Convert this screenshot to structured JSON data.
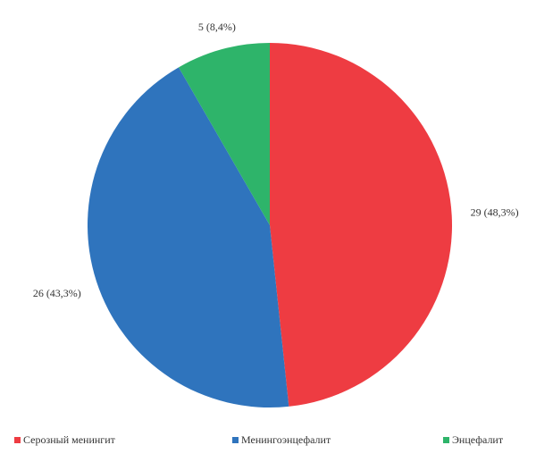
{
  "chart_data": {
    "type": "pie",
    "categories": [
      "Серозный менингит",
      "Менингоэнцефалит",
      "Энцефалит"
    ],
    "values": [
      29,
      26,
      5
    ],
    "value_labels": [
      "29 (48,3%)",
      "26 (43,3%)",
      "5 (8,4%)"
    ],
    "colors": [
      "#ee3c42",
      "#2f74bd",
      "#2eb46a"
    ],
    "legend": "bottom"
  }
}
